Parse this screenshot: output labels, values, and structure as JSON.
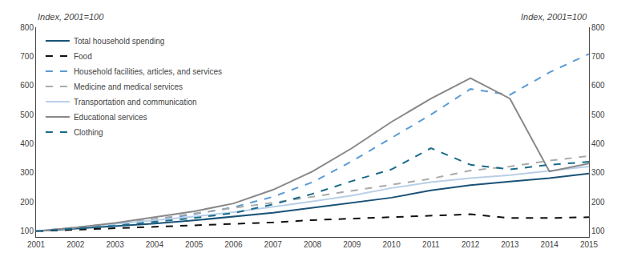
{
  "chart_data": {
    "type": "line",
    "ylabel": "Index, 2001=100",
    "y2label": "Index, 2001=100",
    "x": [
      2001,
      2002,
      2003,
      2004,
      2005,
      2006,
      2007,
      2008,
      2009,
      2010,
      2011,
      2012,
      2013,
      2014,
      2015
    ],
    "xlim": [
      2001,
      2015
    ],
    "xticks": [
      2001,
      2002,
      2003,
      2004,
      2005,
      2006,
      2007,
      2008,
      2009,
      2010,
      2011,
      2012,
      2013,
      2014,
      2015
    ],
    "ylim": [
      80,
      800
    ],
    "yticks": [
      100,
      200,
      300,
      400,
      500,
      600,
      700,
      800
    ],
    "y2lim": [
      80,
      800
    ],
    "y2ticks": [
      100,
      200,
      300,
      400,
      500,
      600,
      700,
      800
    ],
    "grid": false,
    "legend": "upper left",
    "series": [
      {
        "name": "Total household spending",
        "color": "#1a5276",
        "line_style": "solid",
        "values": [
          100,
          108,
          116,
          126,
          137,
          150,
          163,
          180,
          197,
          215,
          240,
          258,
          270,
          282,
          298
        ]
      },
      {
        "name": "Food",
        "color": "#111111",
        "line_style": "dashed",
        "values": [
          100,
          105,
          110,
          116,
          120,
          126,
          130,
          138,
          143,
          148,
          153,
          158,
          145,
          145,
          148
        ]
      },
      {
        "name": "Household facilities, articles, and services",
        "color": "#5b9bd5",
        "line_style": "dashed",
        "values": [
          100,
          110,
          122,
          138,
          158,
          182,
          218,
          268,
          340,
          420,
          500,
          588,
          568,
          645,
          708
        ]
      },
      {
        "name": "Medicine and medical services",
        "color": "#aaaaaa",
        "line_style": "dashed",
        "values": [
          100,
          112,
          126,
          142,
          160,
          178,
          198,
          218,
          238,
          258,
          280,
          308,
          322,
          342,
          358
        ]
      },
      {
        "name": "Transportation and communication",
        "color": "#b8cfe8",
        "line_style": "solid",
        "values": [
          100,
          112,
          124,
          136,
          150,
          165,
          183,
          202,
          222,
          248,
          268,
          282,
          292,
          308,
          322
        ]
      },
      {
        "name": "Educational services",
        "color": "#888888",
        "line_style": "solid",
        "values": [
          100,
          112,
          128,
          148,
          168,
          195,
          242,
          305,
          385,
          475,
          555,
          625,
          555,
          305,
          332
        ]
      },
      {
        "name": "Clothing",
        "color": "#1a6b8a",
        "line_style": "dashed",
        "values": [
          100,
          108,
          118,
          132,
          145,
          162,
          192,
          228,
          272,
          312,
          385,
          328,
          312,
          328,
          338
        ]
      }
    ]
  }
}
